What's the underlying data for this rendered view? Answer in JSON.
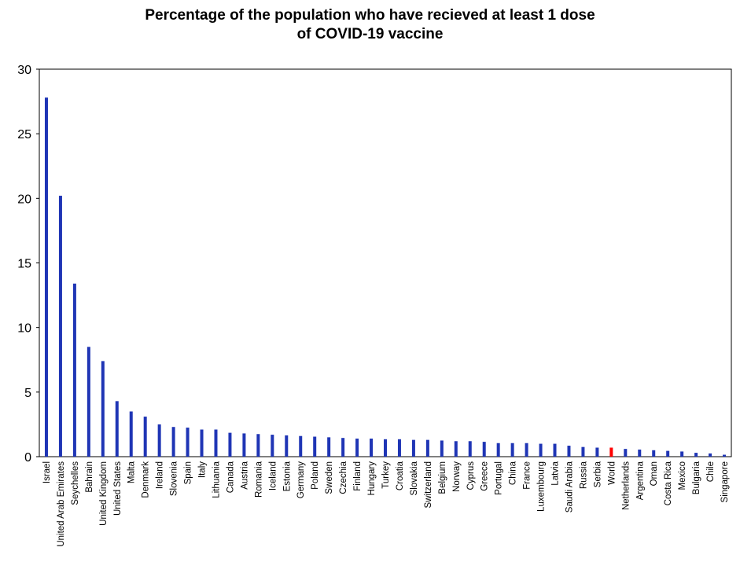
{
  "chart_data": {
    "type": "bar",
    "title": "Percentage of the population who have recieved at least 1 dose of COVID-19 vaccine",
    "title_lines": [
      "Percentage of the population who have recieved at least 1 dose",
      "of COVID-19 vaccine"
    ],
    "xlabel": "",
    "ylabel": "",
    "ylim": [
      0,
      30
    ],
    "yticks": [
      0,
      5,
      10,
      15,
      20,
      25,
      30
    ],
    "grid": false,
    "legend": "none",
    "bar_color": "#1f35b5",
    "highlight_color": "#ff0000",
    "highlight_category": "World",
    "categories": [
      "Israel",
      "United Arab Emirates",
      "Seychelles",
      "Bahrain",
      "United Kingdom",
      "United States",
      "Malta",
      "Denmark",
      "Ireland",
      "Slovenia",
      "Spain",
      "Italy",
      "Lithuania",
      "Canada",
      "Austria",
      "Romania",
      "Iceland",
      "Estonia",
      "Germany",
      "Poland",
      "Sweden",
      "Czechia",
      "Finland",
      "Hungary",
      "Turkey",
      "Croatia",
      "Slovakia",
      "Switzerland",
      "Belgium",
      "Norway",
      "Cyprus",
      "Greece",
      "Portugal",
      "China",
      "France",
      "Luxembourg",
      "Latvia",
      "Saudi Arabia",
      "Russia",
      "Serbia",
      "World",
      "Netherlands",
      "Argentina",
      "Oman",
      "Costa Rica",
      "Mexico",
      "Bulgaria",
      "Chile",
      "Singapore"
    ],
    "values": [
      27.8,
      20.2,
      13.4,
      8.5,
      7.4,
      4.3,
      3.5,
      3.1,
      2.5,
      2.3,
      2.25,
      2.1,
      2.1,
      1.85,
      1.8,
      1.75,
      1.7,
      1.65,
      1.6,
      1.55,
      1.5,
      1.45,
      1.4,
      1.4,
      1.35,
      1.35,
      1.3,
      1.3,
      1.25,
      1.2,
      1.2,
      1.15,
      1.05,
      1.05,
      1.05,
      1.0,
      1.0,
      0.85,
      0.75,
      0.7,
      0.7,
      0.6,
      0.55,
      0.5,
      0.45,
      0.4,
      0.3,
      0.25,
      0.15
    ]
  }
}
